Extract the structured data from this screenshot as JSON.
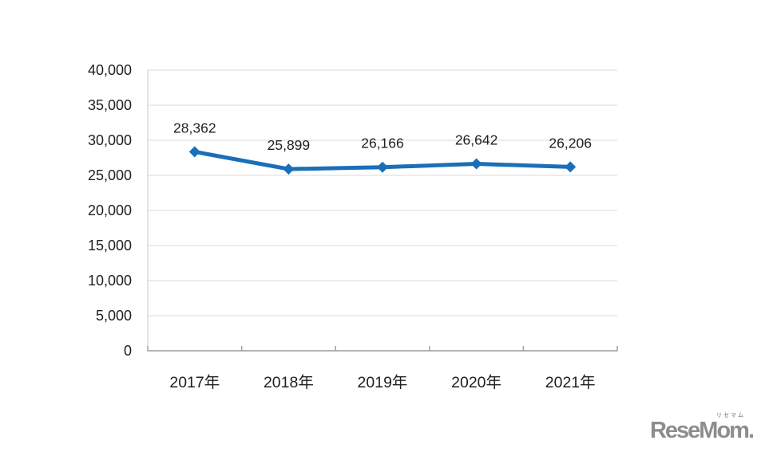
{
  "chart_data": {
    "type": "line",
    "categories": [
      "2017年",
      "2018年",
      "2019年",
      "2020年",
      "2021年"
    ],
    "series": [
      {
        "name": "",
        "values": [
          28362,
          25899,
          26166,
          26642,
          26206
        ],
        "data_labels": [
          "28,362",
          "25,899",
          "26,166",
          "26,642",
          "26,206"
        ]
      }
    ],
    "title": "",
    "xlabel": "",
    "ylabel": "",
    "ylim": [
      0,
      40000
    ],
    "ytick_step": 5000,
    "ytick_labels": [
      "0",
      "5,000",
      "10,000",
      "15,000",
      "20,000",
      "25,000",
      "30,000",
      "35,000",
      "40,000"
    ],
    "grid": true,
    "legend_position": "none",
    "marker": "diamond",
    "colors": {
      "line": "#1b6eb8",
      "marker": "#1b6eb8",
      "gridline": "#d9d9d9",
      "axis": "#9b9b9b",
      "plot_border": "#c9c9c9",
      "text": "#1f1f1f"
    }
  },
  "logo": {
    "text": "ReseMom.",
    "kana": "リセマム"
  }
}
